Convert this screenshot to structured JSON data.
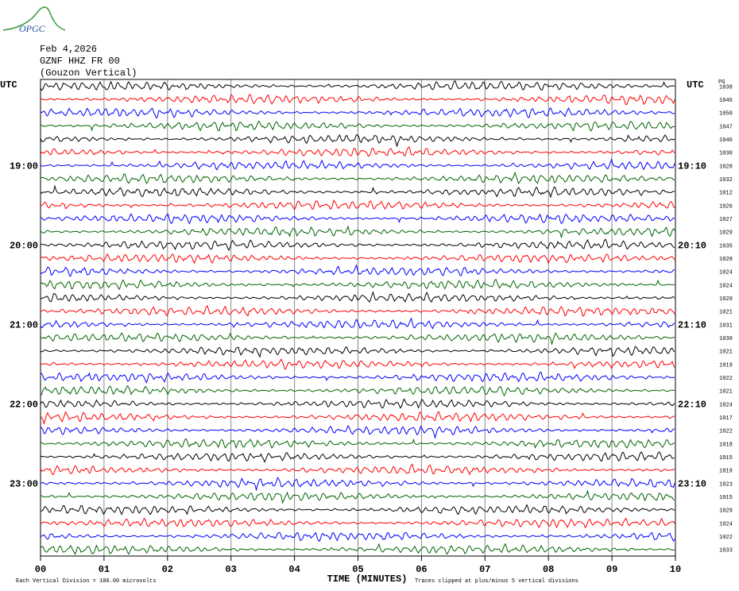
{
  "header": {
    "logo": "OPGC",
    "date": "Feb 4,2026",
    "station": "GZNF HHZ FR 00",
    "location": "(Gouzon Vertical)"
  },
  "chart_data": {
    "type": "helicorder",
    "left_axis_label": "UTC",
    "right_axis_label": "UTC",
    "right_column_label": "PG",
    "x_label": "TIME (MINUTES)",
    "xlim": [
      0,
      10
    ],
    "xticks": [
      {
        "value": 0,
        "label": "00"
      },
      {
        "value": 1,
        "label": "01"
      },
      {
        "value": 2,
        "label": "02"
      },
      {
        "value": 3,
        "label": "03"
      },
      {
        "value": 4,
        "label": "04"
      },
      {
        "value": 5,
        "label": "05"
      },
      {
        "value": 6,
        "label": "06"
      },
      {
        "value": 7,
        "label": "07"
      },
      {
        "value": 8,
        "label": "08"
      },
      {
        "value": 9,
        "label": "09"
      },
      {
        "value": 10,
        "label": "10"
      }
    ],
    "row_labels_left": [
      null,
      null,
      null,
      null,
      null,
      null,
      "19:00",
      null,
      null,
      null,
      null,
      null,
      "20:00",
      null,
      null,
      null,
      null,
      null,
      "21:00",
      null,
      null,
      null,
      null,
      null,
      "22:00",
      null,
      null,
      null,
      null,
      null,
      "23:00",
      null,
      null,
      null,
      null,
      null
    ],
    "row_labels_right": [
      null,
      null,
      null,
      null,
      null,
      null,
      "19:10",
      null,
      null,
      null,
      null,
      null,
      "20:10",
      null,
      null,
      null,
      null,
      null,
      "21:10",
      null,
      null,
      null,
      null,
      null,
      "22:10",
      null,
      null,
      null,
      null,
      null,
      "23:10",
      null,
      null,
      null,
      null,
      null
    ],
    "row_values": [
      1038,
      1046,
      1050,
      1047,
      1046,
      1030,
      1028,
      1032,
      1012,
      1026,
      1027,
      1029,
      1035,
      1028,
      1024,
      1024,
      1020,
      1021,
      1031,
      1030,
      1021,
      1019,
      1022,
      1021,
      1024,
      1017,
      1022,
      1018,
      1015,
      1019,
      1023,
      1015,
      1029,
      1024,
      1022,
      1033
    ],
    "colors": [
      "#000000",
      "#ff0000",
      "#0000ff",
      "#006400"
    ],
    "footnote_left": "Each Vertical Division =  100.00 microvolts",
    "footnote_right": "Traces clipped at plus/minus 5 vertical divisions"
  }
}
